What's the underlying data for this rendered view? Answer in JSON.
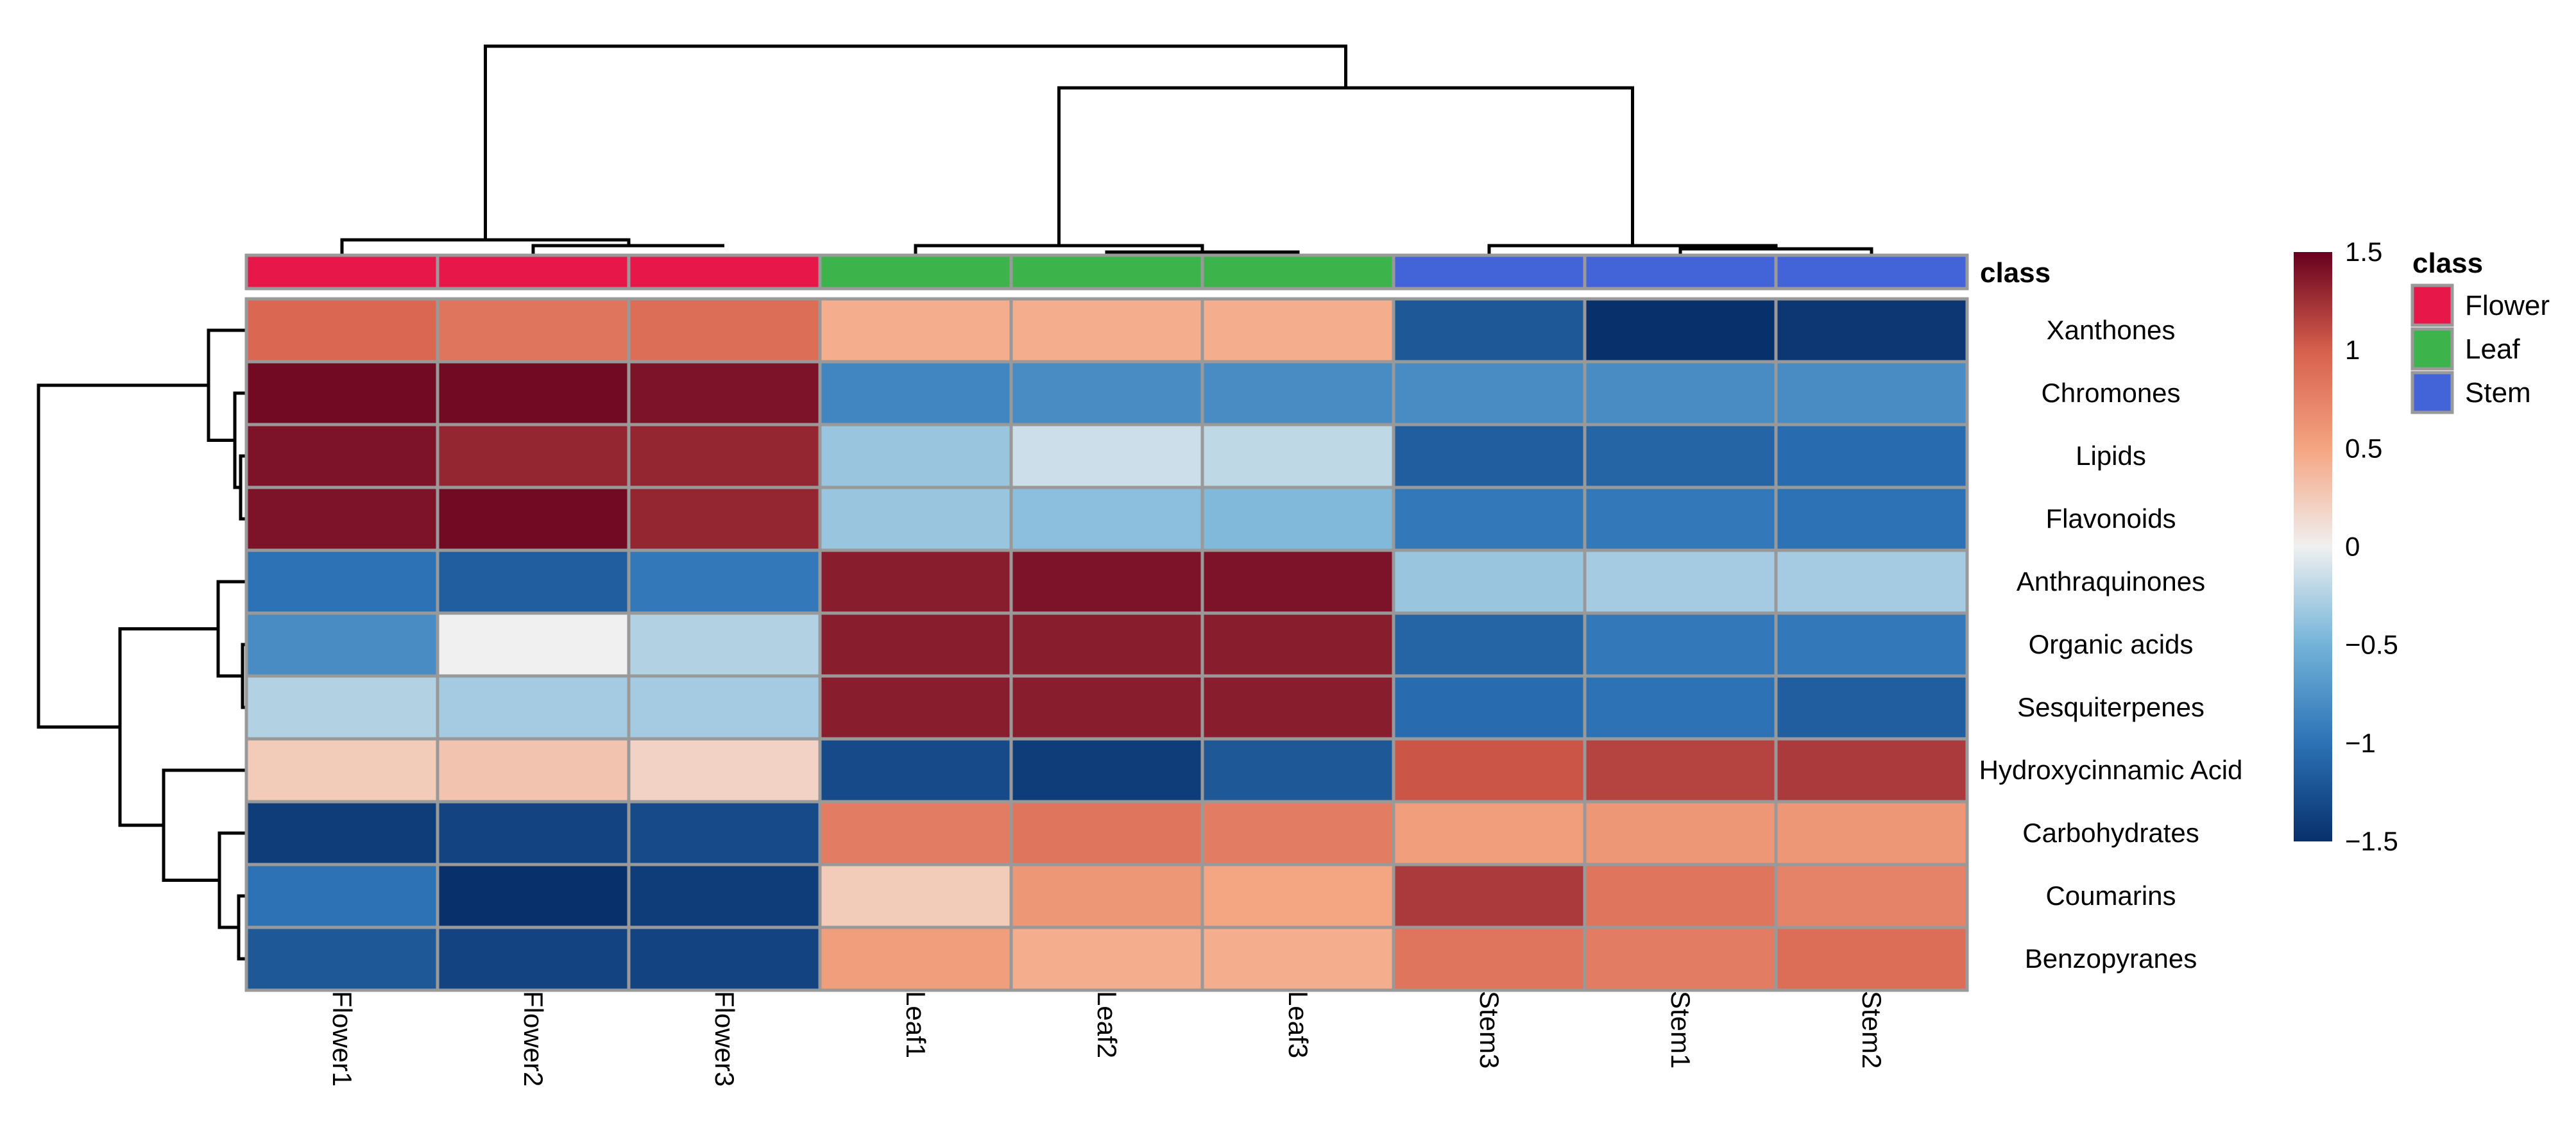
{
  "chart_data": {
    "type": "heatmap",
    "columns": [
      "Flower1",
      "Flower2",
      "Flower3",
      "Leaf1",
      "Leaf2",
      "Leaf3",
      "Stem3",
      "Stem1",
      "Stem2"
    ],
    "column_classes": [
      "Flower",
      "Flower",
      "Flower",
      "Leaf",
      "Leaf",
      "Leaf",
      "Stem",
      "Stem",
      "Stem"
    ],
    "rows": [
      "Xanthones",
      "Chromones",
      "Lipids",
      "Flavonoids",
      "Anthraquinones",
      "Organic acids",
      "Sesquiterpenes",
      "Hydroxycinnamic Acid",
      "Carbohydrates",
      "Coumarins",
      "Benzopyranes"
    ],
    "values": [
      [
        0.95,
        0.85,
        0.9,
        0.45,
        0.45,
        0.45,
        -1.2,
        -1.55,
        -1.45
      ],
      [
        1.45,
        1.45,
        1.4,
        -0.85,
        -0.8,
        -0.8,
        -0.8,
        -0.8,
        -0.8
      ],
      [
        1.4,
        1.3,
        1.3,
        -0.35,
        -0.15,
        -0.2,
        -1.15,
        -1.1,
        -1.05
      ],
      [
        1.4,
        1.45,
        1.3,
        -0.35,
        -0.4,
        -0.45,
        -0.95,
        -0.95,
        -1.0
      ],
      [
        -1.0,
        -1.15,
        -0.95,
        1.35,
        1.4,
        1.4,
        -0.35,
        -0.3,
        -0.3
      ],
      [
        -0.8,
        0.0,
        -0.25,
        1.35,
        1.35,
        1.35,
        -1.1,
        -0.95,
        -0.95
      ],
      [
        -0.25,
        -0.3,
        -0.3,
        1.35,
        1.35,
        1.35,
        -1.05,
        -1.0,
        -1.15
      ],
      [
        0.25,
        0.3,
        0.2,
        -1.3,
        -1.4,
        -1.2,
        1.05,
        1.15,
        1.2
      ],
      [
        -1.4,
        -1.35,
        -1.3,
        0.8,
        0.85,
        0.8,
        0.55,
        0.6,
        0.6
      ],
      [
        -1.0,
        -1.65,
        -1.4,
        0.25,
        0.6,
        0.5,
        1.2,
        0.85,
        0.75
      ],
      [
        -1.2,
        -1.35,
        -1.35,
        0.55,
        0.45,
        0.45,
        0.85,
        0.8,
        0.9
      ]
    ],
    "color_scale": {
      "min": -1.5,
      "max": 1.5,
      "stops": [
        {
          "value": -1.5,
          "color": "#08306B"
        },
        {
          "value": -1.0,
          "color": "#2C72B5"
        },
        {
          "value": -0.5,
          "color": "#73B3D8"
        },
        {
          "value": 0.0,
          "color": "#F0F0F0"
        },
        {
          "value": 0.5,
          "color": "#F4A582"
        },
        {
          "value": 1.0,
          "color": "#D6604D"
        },
        {
          "value": 1.5,
          "color": "#67001F"
        }
      ],
      "ticks": [
        1.5,
        1,
        0.5,
        0,
        -0.5,
        -1,
        -1.5
      ],
      "tick_labels": [
        "1.5",
        "1",
        "0.5",
        "0",
        "−0.5",
        "−1",
        "−1.5"
      ]
    },
    "class_annotation": {
      "title": "class",
      "legend_title": "class",
      "items": [
        {
          "label": "Flower",
          "color": "#E8174A"
        },
        {
          "label": "Leaf",
          "color": "#3CB44B"
        },
        {
          "label": "Stem",
          "color": "#4363D8"
        }
      ]
    },
    "row_dendrogram": "hierarchical clustering of rows",
    "column_dendrogram": "hierarchical clustering of columns"
  }
}
